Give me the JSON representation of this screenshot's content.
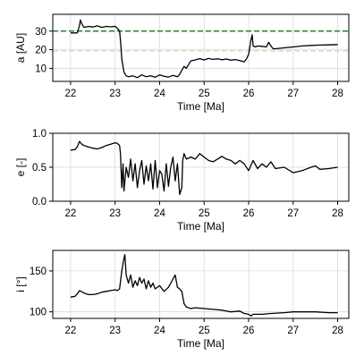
{
  "chart_data": [
    {
      "type": "line",
      "xlabel": "Time [Ma]",
      "ylabel": "a [AU]",
      "xlim": [
        21.6,
        28.25
      ],
      "ylim": [
        3,
        39
      ],
      "xticks": [
        22,
        23,
        24,
        25,
        26,
        27,
        28
      ],
      "yticks": [
        10,
        20,
        30
      ],
      "grid": true,
      "reference_lines": [
        {
          "y": 30,
          "color": "#2e7d32",
          "style": "dashed"
        },
        {
          "y": 19.3,
          "color": "#c5e0b4",
          "style": "dashed"
        }
      ],
      "series": [
        {
          "color": "#000000",
          "x": [
            22.0,
            22.15,
            22.2,
            22.22,
            22.25,
            22.3,
            22.4,
            22.5,
            22.6,
            22.7,
            22.8,
            22.9,
            23.0,
            23.05,
            23.1,
            23.12,
            23.15,
            23.2,
            23.25,
            23.3,
            23.4,
            23.5,
            23.6,
            23.7,
            23.8,
            23.9,
            24.0,
            24.1,
            24.2,
            24.3,
            24.4,
            24.45,
            24.5,
            24.55,
            24.6,
            24.65,
            24.7,
            24.8,
            24.9,
            25.0,
            25.1,
            25.2,
            25.3,
            25.4,
            25.5,
            25.6,
            25.7,
            25.8,
            25.9,
            25.95,
            26.0,
            26.05,
            26.08,
            26.1,
            26.15,
            26.2,
            26.3,
            26.4,
            26.45,
            26.5,
            26.55,
            26.6,
            26.8,
            27.0,
            27.2,
            27.4,
            27.6,
            27.8,
            28.0
          ],
          "y": [
            29,
            29,
            33,
            36,
            34,
            32,
            32.5,
            32.2,
            32.8,
            32,
            32.5,
            32.3,
            32.5,
            31.5,
            30,
            25,
            15,
            8,
            6,
            5.5,
            6,
            5,
            6.5,
            5.5,
            6,
            5.2,
            6.5,
            5.8,
            5.3,
            6.2,
            5.5,
            6.8,
            9,
            11,
            10,
            12,
            14,
            14.5,
            15.2,
            14.5,
            15.3,
            14.8,
            15.1,
            14.6,
            15.0,
            14.4,
            14.7,
            14.2,
            13.5,
            15,
            17.5,
            25,
            28,
            22,
            21.5,
            22,
            21.8,
            21.5,
            24,
            22,
            20.5,
            20.5,
            21,
            21.5,
            22,
            22.3,
            22.5,
            22.6,
            22.8
          ]
        }
      ]
    },
    {
      "type": "line",
      "xlabel": "Time [Ma]",
      "ylabel": "e [-]",
      "xlim": [
        21.6,
        28.25
      ],
      "ylim": [
        0.0,
        1.0
      ],
      "xticks": [
        22,
        23,
        24,
        25,
        26,
        27,
        28
      ],
      "yticks": [
        0.0,
        0.5,
        1.0
      ],
      "ytick_labels": [
        "0.0",
        "0.5",
        "1.0"
      ],
      "grid": true,
      "series": [
        {
          "color": "#000000",
          "x": [
            22.0,
            22.1,
            22.15,
            22.2,
            22.25,
            22.3,
            22.4,
            22.5,
            22.6,
            22.7,
            22.8,
            22.9,
            23.0,
            23.05,
            23.1,
            23.12,
            23.15,
            23.18,
            23.2,
            23.25,
            23.3,
            23.35,
            23.4,
            23.45,
            23.5,
            23.55,
            23.6,
            23.65,
            23.7,
            23.75,
            23.8,
            23.85,
            23.9,
            23.95,
            24.0,
            24.05,
            24.1,
            24.15,
            24.2,
            24.25,
            24.3,
            24.35,
            24.4,
            24.45,
            24.5,
            24.52,
            24.55,
            24.6,
            24.7,
            24.8,
            24.9,
            25.0,
            25.1,
            25.2,
            25.3,
            25.4,
            25.5,
            25.6,
            25.7,
            25.8,
            25.9,
            26.0,
            26.1,
            26.2,
            26.3,
            26.4,
            26.5,
            26.6,
            26.8,
            27.0,
            27.2,
            27.4,
            27.5,
            27.6,
            27.8,
            28.0
          ],
          "y": [
            0.75,
            0.76,
            0.8,
            0.88,
            0.84,
            0.82,
            0.8,
            0.78,
            0.77,
            0.79,
            0.82,
            0.84,
            0.86,
            0.85,
            0.82,
            0.7,
            0.2,
            0.55,
            0.15,
            0.5,
            0.35,
            0.62,
            0.3,
            0.55,
            0.2,
            0.45,
            0.6,
            0.25,
            0.52,
            0.3,
            0.55,
            0.18,
            0.6,
            0.2,
            0.45,
            0.4,
            0.15,
            0.55,
            0.22,
            0.5,
            0.65,
            0.3,
            0.55,
            0.1,
            0.2,
            0.6,
            0.7,
            0.62,
            0.65,
            0.62,
            0.7,
            0.65,
            0.6,
            0.58,
            0.62,
            0.66,
            0.62,
            0.6,
            0.55,
            0.6,
            0.55,
            0.45,
            0.6,
            0.48,
            0.55,
            0.5,
            0.58,
            0.48,
            0.5,
            0.42,
            0.45,
            0.5,
            0.52,
            0.47,
            0.48,
            0.5
          ]
        }
      ]
    },
    {
      "type": "line",
      "xlabel": "Time [Ma]",
      "ylabel": "i [°]",
      "xlim": [
        21.6,
        28.25
      ],
      "ylim": [
        92,
        175
      ],
      "xticks": [
        22,
        23,
        24,
        25,
        26,
        27,
        28
      ],
      "yticks": [
        100,
        150
      ],
      "grid": true,
      "series": [
        {
          "color": "#000000",
          "x": [
            22.0,
            22.1,
            22.15,
            22.2,
            22.3,
            22.4,
            22.5,
            22.6,
            22.7,
            22.8,
            22.9,
            23.0,
            23.05,
            23.1,
            23.15,
            23.2,
            23.22,
            23.25,
            23.3,
            23.35,
            23.4,
            23.45,
            23.5,
            23.55,
            23.6,
            23.65,
            23.7,
            23.75,
            23.8,
            23.85,
            23.9,
            24.0,
            24.1,
            24.2,
            24.3,
            24.35,
            24.4,
            24.45,
            24.5,
            24.55,
            24.6,
            24.7,
            24.8,
            25.0,
            25.2,
            25.4,
            25.6,
            25.8,
            25.9,
            26.0,
            26.05,
            26.1,
            26.3,
            26.5,
            26.8,
            27.0,
            27.2,
            27.5,
            27.8,
            28.0
          ],
          "y": [
            118,
            119,
            122,
            126,
            123,
            121,
            121,
            122,
            124,
            125,
            126,
            127,
            126,
            128,
            150,
            165,
            170,
            145,
            135,
            145,
            130,
            138,
            132,
            142,
            135,
            140,
            128,
            138,
            130,
            135,
            128,
            132,
            125,
            130,
            140,
            145,
            130,
            128,
            125,
            110,
            106,
            104,
            105,
            104,
            103,
            102,
            100,
            101,
            98,
            97,
            95,
            97,
            97,
            98,
            99,
            100,
            100,
            100,
            99,
            99
          ]
        }
      ]
    }
  ]
}
